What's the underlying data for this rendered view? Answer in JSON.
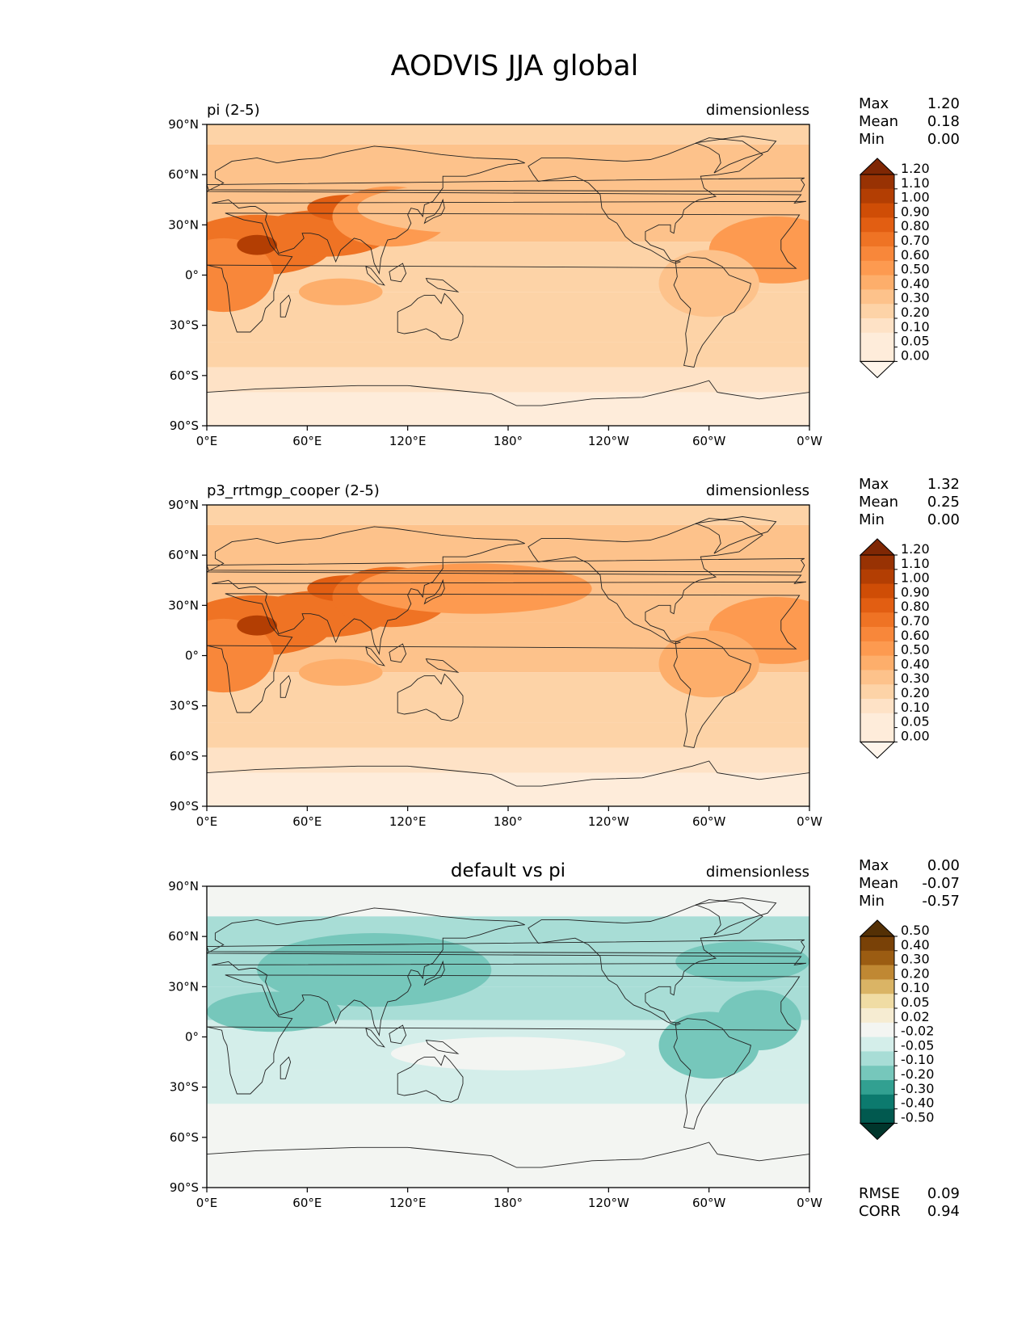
{
  "figure_title": "AODVIS JJA global",
  "colors": {
    "ocean_sequential": [
      "#fff5eb",
      "#feecda",
      "#fee2c6",
      "#fdd3a7",
      "#fdc28b",
      "#fdae6b",
      "#fd9a50",
      "#f8873a",
      "#ef7324",
      "#e25e12",
      "#cf4d06",
      "#b33e03",
      "#983203",
      "#7f2704"
    ],
    "diff_diverging": [
      "#00362c",
      "#01594f",
      "#0c7a6e",
      "#32a091",
      "#76c7bb",
      "#a8ddd6",
      "#d4eeea",
      "#f3f5f2",
      "#f6ecd2",
      "#f0dca4",
      "#dab465",
      "#c08833",
      "#9b5c12",
      "#794107",
      "#543005"
    ],
    "coastline": "#222222"
  },
  "x_ticks": [
    "0°E",
    "60°E",
    "120°E",
    "180°",
    "120°W",
    "60°W",
    "0°W"
  ],
  "y_ticks": [
    "90°N",
    "60°N",
    "30°N",
    "0°",
    "30°S",
    "60°S",
    "90°S"
  ],
  "panels": [
    {
      "left_title": "pi (2-5)",
      "center_title": "",
      "units": "dimensionless",
      "stats": [
        {
          "label": "Max",
          "value": "1.20"
        },
        {
          "label": "Mean",
          "value": "0.18"
        },
        {
          "label": "Min",
          "value": "0.00"
        }
      ],
      "colorbar_labels": [
        "0.00",
        "0.05",
        "0.10",
        "0.20",
        "0.30",
        "0.40",
        "0.50",
        "0.60",
        "0.70",
        "0.80",
        "0.90",
        "1.00",
        "1.10",
        "1.20"
      ],
      "colormap": "ocean_sequential",
      "footer_stats": []
    },
    {
      "left_title": "p3_rrtmgp_cooper (2-5)",
      "center_title": "",
      "units": "dimensionless",
      "stats": [
        {
          "label": "Max",
          "value": "1.32"
        },
        {
          "label": "Mean",
          "value": "0.25"
        },
        {
          "label": "Min",
          "value": "0.00"
        }
      ],
      "colorbar_labels": [
        "0.00",
        "0.05",
        "0.10",
        "0.20",
        "0.30",
        "0.40",
        "0.50",
        "0.60",
        "0.70",
        "0.80",
        "0.90",
        "1.00",
        "1.10",
        "1.20"
      ],
      "colormap": "ocean_sequential",
      "footer_stats": []
    },
    {
      "left_title": "",
      "center_title": "default vs pi",
      "units": "dimensionless",
      "stats": [
        {
          "label": "Max",
          "value": "0.00"
        },
        {
          "label": "Mean",
          "value": "-0.07"
        },
        {
          "label": "Min",
          "value": "-0.57"
        }
      ],
      "colorbar_labels": [
        "-0.50",
        "-0.40",
        "-0.30",
        "-0.20",
        "-0.10",
        "-0.05",
        "-0.02",
        "0.02",
        "0.05",
        "0.10",
        "0.20",
        "0.30",
        "0.40",
        "0.50"
      ],
      "colormap": "diff_diverging",
      "footer_stats": [
        {
          "label": "RMSE",
          "value": "0.09"
        },
        {
          "label": "CORR",
          "value": "0.94"
        }
      ]
    }
  ],
  "chart_data": {
    "type": "heatmap",
    "title": "AODVIS JJA global",
    "x_range": [
      0,
      360
    ],
    "y_range": [
      -90,
      90
    ],
    "x_tick_labels": [
      "0°E",
      "60°E",
      "120°E",
      "180°",
      "120°W",
      "60°W",
      "0°W"
    ],
    "y_tick_labels": [
      "90°N",
      "60°N",
      "30°N",
      "0°",
      "30°S",
      "60°S",
      "90°S"
    ],
    "maps": [
      {
        "name": "pi (2-5)",
        "units": "dimensionless",
        "max": 1.2,
        "mean": 0.18,
        "min": 0.0,
        "levels": [
          0.0,
          0.05,
          0.1,
          0.2,
          0.3,
          0.4,
          0.5,
          0.6,
          0.7,
          0.8,
          0.9,
          1.0,
          1.1,
          1.2
        ]
      },
      {
        "name": "p3_rrtmgp_cooper (2-5)",
        "units": "dimensionless",
        "max": 1.32,
        "mean": 0.25,
        "min": 0.0,
        "levels": [
          0.0,
          0.05,
          0.1,
          0.2,
          0.3,
          0.4,
          0.5,
          0.6,
          0.7,
          0.8,
          0.9,
          1.0,
          1.1,
          1.2
        ]
      },
      {
        "name": "default vs pi",
        "units": "dimensionless",
        "max": 0.0,
        "mean": -0.07,
        "min": -0.57,
        "rmse": 0.09,
        "corr": 0.94,
        "levels": [
          -0.5,
          -0.4,
          -0.3,
          -0.2,
          -0.1,
          -0.05,
          -0.02,
          0.02,
          0.05,
          0.1,
          0.2,
          0.3,
          0.4,
          0.5
        ]
      }
    ]
  }
}
